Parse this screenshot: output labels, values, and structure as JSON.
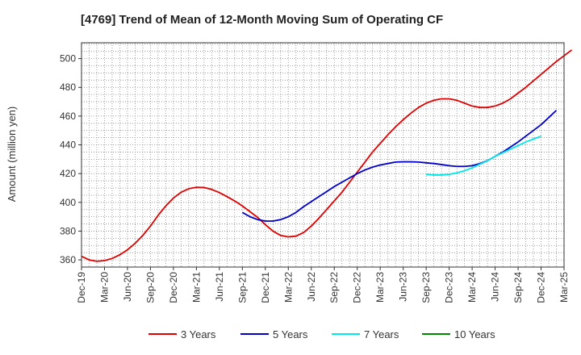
{
  "chart_data": {
    "type": "line",
    "title": "[4769]  Trend of Mean of 12-Month Moving Sum of Operating CF",
    "xlabel": "",
    "ylabel": "Amount (million yen)",
    "ylim": [
      355,
      511
    ],
    "yticks": [
      360,
      380,
      400,
      420,
      440,
      460,
      480,
      500
    ],
    "x_ticks": [
      "Dec-19",
      "Mar-20",
      "Jun-20",
      "Sep-20",
      "Dec-20",
      "Mar-21",
      "Jun-21",
      "Sep-21",
      "Dec-21",
      "Mar-22",
      "Jun-22",
      "Sep-22",
      "Dec-22",
      "Mar-23",
      "Jun-23",
      "Sep-23",
      "Dec-23",
      "Mar-24",
      "Jun-24",
      "Sep-24",
      "Dec-24",
      "Mar-25"
    ],
    "x_start": "Dec-19",
    "x_end": "Mar-25",
    "grid": true,
    "legend_position": "bottom",
    "series": [
      {
        "name": "3 Years",
        "color": "#e00000",
        "start": "Dec-19",
        "values": [
          362.5,
          360,
          359,
          359.5,
          361,
          363.5,
          367,
          371.5,
          377,
          383.5,
          391,
          397.5,
          403,
          407,
          409.5,
          410.5,
          410.3,
          409,
          406.8,
          404,
          401,
          397.5,
          393.5,
          389.5,
          384.5,
          380,
          377,
          376,
          376.5,
          379,
          383.5,
          389,
          395,
          401,
          407,
          414,
          421,
          428,
          435,
          441,
          447,
          452.5,
          457.5,
          462,
          466,
          469,
          471,
          472,
          472,
          471,
          469,
          467,
          466,
          466,
          467,
          469,
          472,
          476,
          480,
          484.5,
          489,
          493.5,
          498,
          502,
          506
        ]
      },
      {
        "name": "5 Years",
        "color": "#0000cc",
        "start": "Sep-21",
        "values": [
          393,
          390,
          388,
          387,
          387,
          388,
          390,
          393,
          397,
          400.5,
          404,
          407.5,
          411,
          414,
          417,
          420,
          422.5,
          424.5,
          426,
          427,
          428,
          428.2,
          428.2,
          428,
          427.5,
          427,
          426.3,
          425.5,
          425,
          425,
          425.5,
          427,
          429,
          432,
          435,
          438.5,
          442,
          446,
          450,
          454,
          459,
          464
        ]
      },
      {
        "name": "7 Years",
        "color": "#00e8e8",
        "start": "Sep-23",
        "values": [
          419.5,
          419,
          419,
          419.5,
          420.5,
          422,
          424,
          426.5,
          429,
          432,
          434.5,
          437,
          439.5,
          442,
          444,
          446
        ]
      },
      {
        "name": "10 Years",
        "color": "#008800",
        "start": "Sep-24",
        "values": []
      }
    ]
  }
}
